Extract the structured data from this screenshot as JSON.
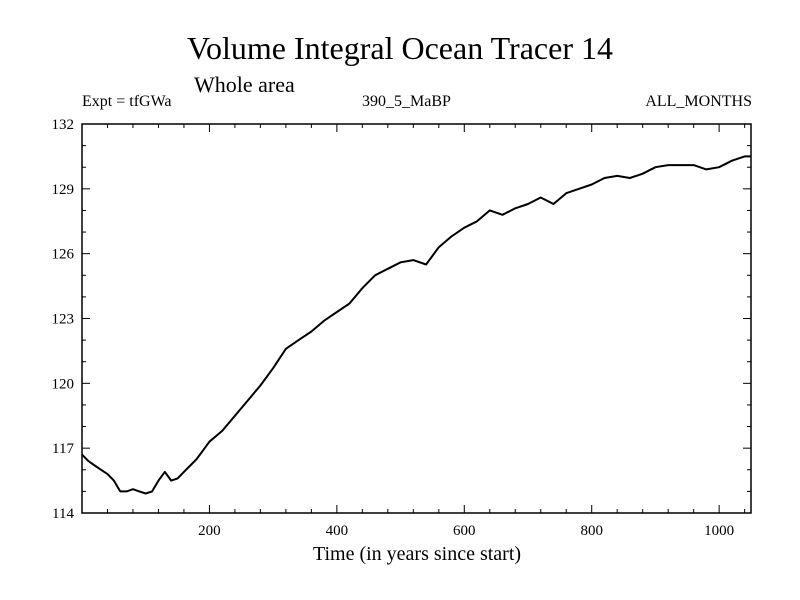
{
  "chart_data": {
    "type": "line",
    "title": "Volume Integral Ocean Tracer 14",
    "subtitle": "Whole area",
    "left_note": "Expt = tfGWa",
    "center_note": "390_5_MaBP",
    "right_note": "ALL_MONTHS",
    "xlabel": "Time (in years since start)",
    "ylabel": "",
    "xlim": [
      0,
      1050
    ],
    "ylim": [
      114,
      132
    ],
    "xticks": [
      200,
      400,
      600,
      800,
      1000
    ],
    "yticks": [
      114,
      117,
      120,
      123,
      126,
      129,
      132
    ],
    "grid": false,
    "series": [
      {
        "color": "#000000",
        "x": [
          0,
          10,
          20,
          30,
          40,
          50,
          60,
          70,
          80,
          90,
          100,
          110,
          120,
          130,
          140,
          150,
          160,
          170,
          180,
          190,
          200,
          220,
          240,
          260,
          280,
          300,
          320,
          340,
          360,
          380,
          400,
          420,
          440,
          460,
          480,
          500,
          520,
          540,
          560,
          580,
          600,
          620,
          640,
          660,
          680,
          700,
          720,
          740,
          760,
          780,
          800,
          820,
          840,
          860,
          880,
          900,
          920,
          940,
          960,
          980,
          1000,
          1020,
          1040,
          1050
        ],
        "values": [
          116.7,
          116.4,
          116.2,
          116.0,
          115.8,
          115.5,
          115.0,
          115.0,
          115.1,
          115.0,
          114.9,
          115.0,
          115.5,
          115.9,
          115.5,
          115.6,
          115.9,
          116.2,
          116.5,
          116.9,
          117.3,
          117.8,
          118.5,
          119.2,
          119.9,
          120.7,
          121.6,
          122.0,
          122.4,
          122.9,
          123.3,
          123.7,
          124.4,
          125.0,
          125.3,
          125.6,
          125.7,
          125.5,
          126.3,
          126.8,
          127.2,
          127.5,
          128.0,
          127.8,
          128.1,
          128.3,
          128.6,
          128.3,
          128.8,
          129.0,
          129.2,
          129.5,
          129.6,
          129.5,
          129.7,
          130.0,
          130.1,
          130.1,
          130.1,
          129.9,
          130.0,
          130.3,
          130.5,
          130.5
        ]
      }
    ]
  }
}
